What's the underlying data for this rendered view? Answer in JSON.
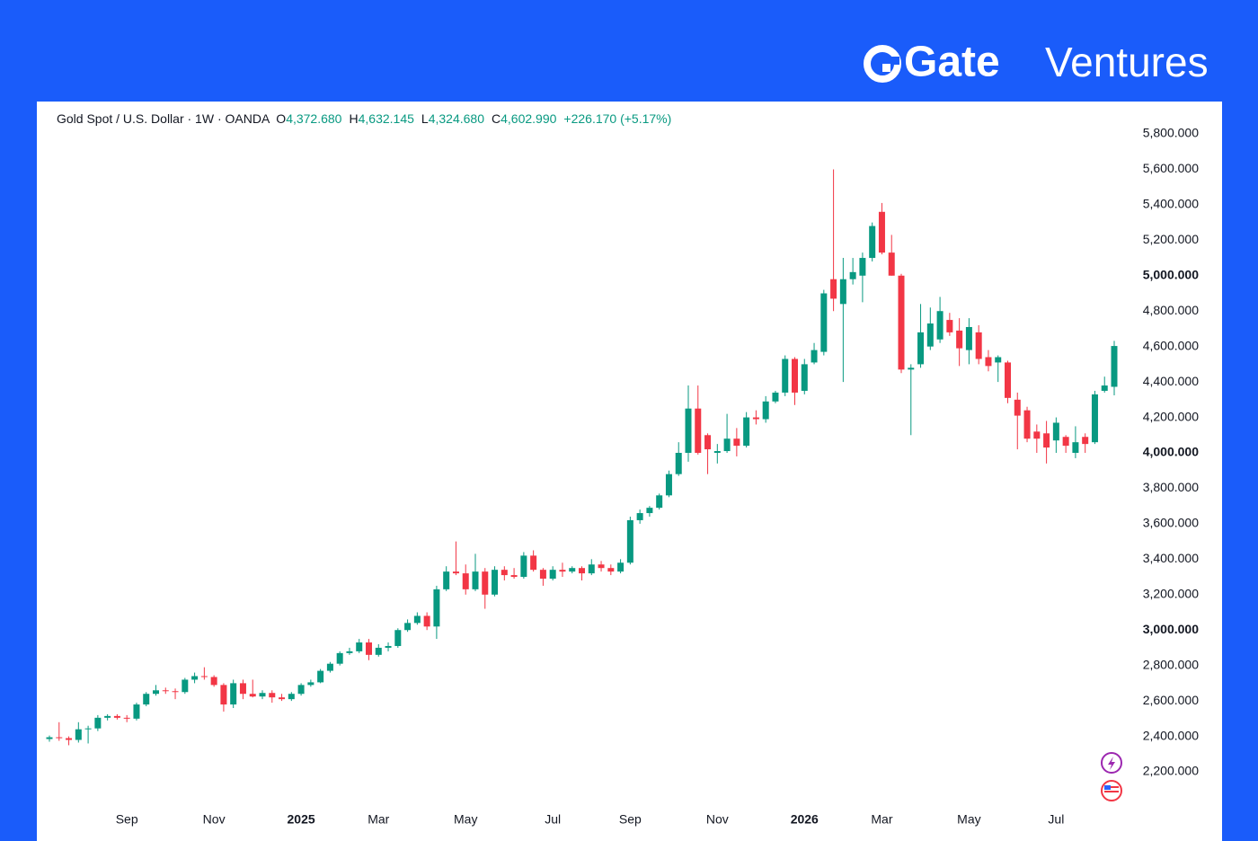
{
  "brand": {
    "name": "Gate",
    "suffix": "Ventures"
  },
  "chart_data": {
    "type": "candlestick",
    "header": {
      "symbol": "Gold Spot / U.S. Dollar · 1W · OANDA",
      "legend": [
        {
          "key": "O",
          "value": "4,372.680"
        },
        {
          "key": "H",
          "value": "4,632.145"
        },
        {
          "key": "L",
          "value": "4,324.680"
        },
        {
          "key": "C",
          "value": "4,602.990"
        }
      ],
      "change": "+226.170 (+5.17%)"
    },
    "up_color": "#089981",
    "down_color": "#f23645",
    "xlim": [
      0,
      110
    ],
    "xticks": [
      {
        "value": 8,
        "label": "Sep"
      },
      {
        "value": 17,
        "label": "Nov"
      },
      {
        "value": 26,
        "label": "2025"
      },
      {
        "value": 34,
        "label": "Mar"
      },
      {
        "value": 43,
        "label": "May"
      },
      {
        "value": 52,
        "label": "Jul"
      },
      {
        "value": 60,
        "label": "Sep"
      },
      {
        "value": 69,
        "label": "Nov"
      },
      {
        "value": 78,
        "label": "2026"
      },
      {
        "value": 86,
        "label": "Mar"
      },
      {
        "value": 95,
        "label": "May"
      },
      {
        "value": 104,
        "label": "Jul"
      }
    ],
    "ylim": [
      2200,
      5800
    ],
    "yticks": [
      {
        "value": 2200,
        "label": "2,200.000"
      },
      {
        "value": 2400,
        "label": "2,400.000"
      },
      {
        "value": 2600,
        "label": "2,600.000"
      },
      {
        "value": 2800,
        "label": "2,800.000"
      },
      {
        "value": 3000,
        "label": "3,000.000"
      },
      {
        "value": 3200,
        "label": "3,200.000"
      },
      {
        "value": 3400,
        "label": "3,400.000"
      },
      {
        "value": 3600,
        "label": "3,600.000"
      },
      {
        "value": 3800,
        "label": "3,800.000"
      },
      {
        "value": 4000,
        "label": "4,000.000"
      },
      {
        "value": 4200,
        "label": "4,200.000"
      },
      {
        "value": 4400,
        "label": "4,400.000"
      },
      {
        "value": 4600,
        "label": "4,600.000"
      },
      {
        "value": 4800,
        "label": "4,800.000"
      },
      {
        "value": 5000,
        "label": "5,000.000"
      },
      {
        "value": 5200,
        "label": "5,200.000"
      },
      {
        "value": 5400,
        "label": "5,400.000"
      },
      {
        "value": 5600,
        "label": "5,600.000"
      },
      {
        "value": 5800,
        "label": "5,800.000"
      }
    ],
    "ohlc": [
      [
        2385,
        2405,
        2370,
        2395
      ],
      [
        2395,
        2480,
        2375,
        2390
      ],
      [
        2390,
        2400,
        2350,
        2380
      ],
      [
        2380,
        2480,
        2365,
        2440
      ],
      [
        2440,
        2460,
        2360,
        2445
      ],
      [
        2445,
        2520,
        2430,
        2505
      ],
      [
        2505,
        2525,
        2490,
        2515
      ],
      [
        2515,
        2525,
        2495,
        2505
      ],
      [
        2505,
        2520,
        2480,
        2500
      ],
      [
        2500,
        2590,
        2490,
        2580
      ],
      [
        2580,
        2650,
        2570,
        2640
      ],
      [
        2640,
        2690,
        2630,
        2660
      ],
      [
        2660,
        2675,
        2640,
        2655
      ],
      [
        2655,
        2670,
        2610,
        2650
      ],
      [
        2650,
        2730,
        2640,
        2720
      ],
      [
        2720,
        2760,
        2700,
        2740
      ],
      [
        2740,
        2790,
        2720,
        2735
      ],
      [
        2735,
        2745,
        2680,
        2690
      ],
      [
        2690,
        2700,
        2540,
        2580
      ],
      [
        2580,
        2720,
        2560,
        2700
      ],
      [
        2700,
        2720,
        2610,
        2640
      ],
      [
        2640,
        2720,
        2620,
        2625
      ],
      [
        2625,
        2660,
        2610,
        2645
      ],
      [
        2645,
        2660,
        2590,
        2620
      ],
      [
        2620,
        2640,
        2600,
        2610
      ],
      [
        2610,
        2650,
        2600,
        2640
      ],
      [
        2640,
        2700,
        2630,
        2690
      ],
      [
        2690,
        2720,
        2680,
        2705
      ],
      [
        2705,
        2780,
        2700,
        2770
      ],
      [
        2770,
        2820,
        2760,
        2810
      ],
      [
        2810,
        2880,
        2800,
        2870
      ],
      [
        2870,
        2900,
        2860,
        2880
      ],
      [
        2880,
        2950,
        2870,
        2930
      ],
      [
        2930,
        2950,
        2830,
        2860
      ],
      [
        2860,
        2920,
        2850,
        2900
      ],
      [
        2900,
        2930,
        2880,
        2910
      ],
      [
        2910,
        3010,
        2900,
        3000
      ],
      [
        3000,
        3060,
        2990,
        3040
      ],
      [
        3040,
        3100,
        3030,
        3080
      ],
      [
        3080,
        3100,
        3000,
        3020
      ],
      [
        3020,
        3250,
        2950,
        3230
      ],
      [
        3230,
        3360,
        3220,
        3330
      ],
      [
        3330,
        3500,
        3310,
        3320
      ],
      [
        3320,
        3370,
        3200,
        3230
      ],
      [
        3230,
        3430,
        3220,
        3330
      ],
      [
        3330,
        3350,
        3120,
        3200
      ],
      [
        3200,
        3360,
        3190,
        3340
      ],
      [
        3340,
        3360,
        3280,
        3310
      ],
      [
        3310,
        3350,
        3290,
        3300
      ],
      [
        3300,
        3440,
        3290,
        3420
      ],
      [
        3420,
        3450,
        3330,
        3340
      ],
      [
        3340,
        3350,
        3250,
        3290
      ],
      [
        3290,
        3360,
        3280,
        3340
      ],
      [
        3340,
        3380,
        3300,
        3330
      ],
      [
        3330,
        3360,
        3320,
        3350
      ],
      [
        3350,
        3360,
        3280,
        3320
      ],
      [
        3320,
        3400,
        3310,
        3370
      ],
      [
        3370,
        3390,
        3330,
        3350
      ],
      [
        3350,
        3370,
        3310,
        3330
      ],
      [
        3330,
        3400,
        3320,
        3380
      ],
      [
        3380,
        3640,
        3370,
        3620
      ],
      [
        3620,
        3680,
        3600,
        3660
      ],
      [
        3660,
        3700,
        3640,
        3690
      ],
      [
        3690,
        3770,
        3680,
        3760
      ],
      [
        3760,
        3900,
        3750,
        3880
      ],
      [
        3880,
        4060,
        3870,
        4000
      ],
      [
        4000,
        4380,
        3950,
        4250
      ],
      [
        4250,
        4380,
        3990,
        4000
      ],
      [
        4100,
        4110,
        3880,
        4020
      ],
      [
        4000,
        4050,
        3940,
        4010
      ],
      [
        4010,
        4220,
        4000,
        4080
      ],
      [
        4080,
        4140,
        3980,
        4040
      ],
      [
        4040,
        4230,
        4030,
        4200
      ],
      [
        4200,
        4240,
        4160,
        4190
      ],
      [
        4190,
        4320,
        4170,
        4290
      ],
      [
        4290,
        4350,
        4280,
        4340
      ],
      [
        4340,
        4550,
        4320,
        4530
      ],
      [
        4530,
        4540,
        4270,
        4340
      ],
      [
        4350,
        4530,
        4330,
        4500
      ],
      [
        4510,
        4620,
        4500,
        4580
      ],
      [
        4570,
        4920,
        4550,
        4900
      ],
      [
        4980,
        5600,
        4800,
        4870
      ],
      [
        4840,
        5100,
        4400,
        4980
      ],
      [
        4980,
        5100,
        4950,
        5020
      ],
      [
        5000,
        5130,
        4850,
        5100
      ],
      [
        5100,
        5300,
        5080,
        5280
      ],
      [
        5360,
        5410,
        5120,
        5130
      ],
      [
        5130,
        5230,
        5000,
        5000
      ],
      [
        5000,
        5010,
        4450,
        4470
      ],
      [
        4470,
        4500,
        4100,
        4480
      ],
      [
        4500,
        4840,
        4480,
        4680
      ],
      [
        4600,
        4820,
        4580,
        4730
      ],
      [
        4640,
        4880,
        4620,
        4800
      ],
      [
        4750,
        4790,
        4660,
        4680
      ],
      [
        4690,
        4760,
        4490,
        4590
      ],
      [
        4580,
        4760,
        4500,
        4710
      ],
      [
        4680,
        4720,
        4500,
        4530
      ],
      [
        4540,
        4580,
        4460,
        4490
      ],
      [
        4510,
        4550,
        4400,
        4540
      ],
      [
        4510,
        4520,
        4280,
        4310
      ],
      [
        4300,
        4340,
        4020,
        4210
      ],
      [
        4240,
        4260,
        4060,
        4080
      ],
      [
        4120,
        4160,
        4000,
        4080
      ],
      [
        4110,
        4180,
        3940,
        4030
      ],
      [
        4070,
        4200,
        4000,
        4170
      ],
      [
        4090,
        4100,
        4000,
        4040
      ],
      [
        4000,
        4150,
        3970,
        4060
      ],
      [
        4090,
        4110,
        4000,
        4050
      ],
      [
        4060,
        4350,
        4050,
        4330
      ],
      [
        4350,
        4430,
        4340,
        4380
      ],
      [
        4372.68,
        4632.145,
        4324.68,
        4602.99
      ]
    ]
  }
}
